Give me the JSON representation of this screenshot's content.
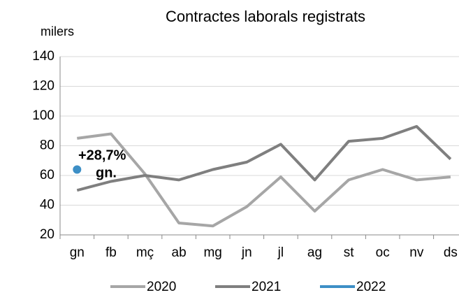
{
  "chart_data": {
    "type": "line",
    "title": "Contractes laborals registrats",
    "y_label": "milers",
    "categories": [
      "gn",
      "fb",
      "mç",
      "ab",
      "mg",
      "jn",
      "jl",
      "ag",
      "st",
      "oc",
      "nv",
      "ds"
    ],
    "series": [
      {
        "name": "2020",
        "color": "#a6a6a6",
        "values": [
          85,
          88,
          61,
          28,
          26,
          39,
          59,
          36,
          57,
          64,
          57,
          59
        ]
      },
      {
        "name": "2021",
        "color": "#7f7f7f",
        "values": [
          50,
          56,
          60,
          57,
          64,
          69,
          81,
          57,
          83,
          85,
          93,
          71
        ]
      },
      {
        "name": "2022",
        "color": "#3d8fc6",
        "values": [
          64,
          null,
          null,
          null,
          null,
          null,
          null,
          null,
          null,
          null,
          null,
          null
        ]
      }
    ],
    "annotations": [
      "+28,7%",
      "gn."
    ],
    "ylim": [
      20,
      140
    ],
    "yticks": [
      20,
      40,
      60,
      80,
      100,
      120,
      140
    ],
    "grid": true,
    "legend": "bottom"
  }
}
